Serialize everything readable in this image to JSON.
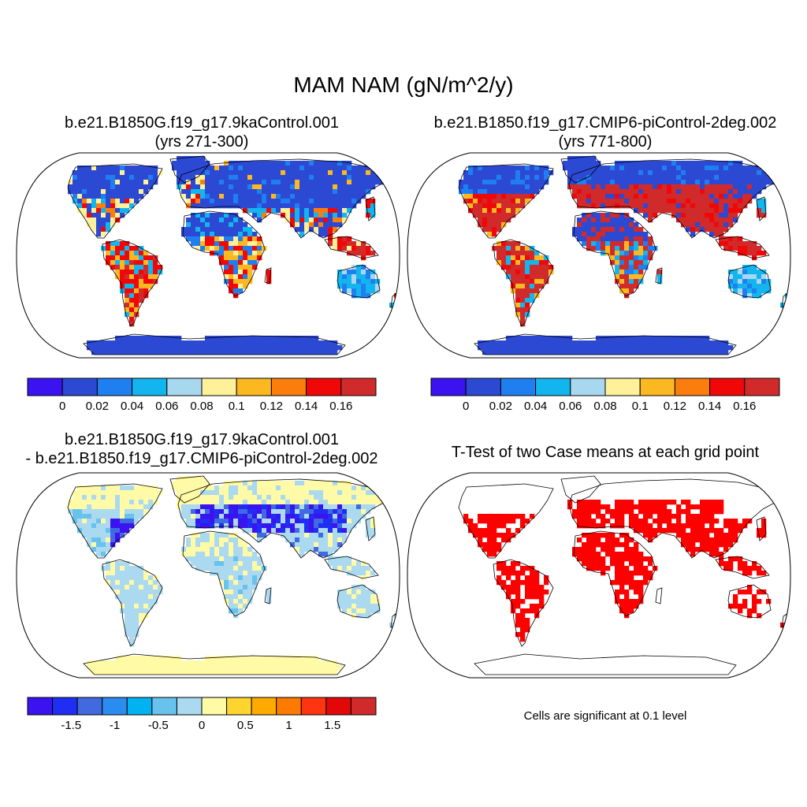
{
  "figure": {
    "title": "MAM NAM (gN/m^2/y)"
  },
  "panels": [
    {
      "id": "case1",
      "title_line1": "b.e21.B1850G.f19_g17.9kaControl.001",
      "title_line2": "(yrs 271-300)",
      "colorbar": {
        "colors": [
          "#3b12f0",
          "#2c49d4",
          "#1f7ff0",
          "#13b5ef",
          "#a8d8f0",
          "#fff199",
          "#fcb821",
          "#fb7d0e",
          "#f00808",
          "#d12a2a"
        ],
        "tick_labels": [
          "0",
          "0.02",
          "0.04",
          "0.06",
          "0.08",
          "0.1",
          "0.12",
          "0.14",
          "0.16"
        ]
      }
    },
    {
      "id": "case2",
      "title_line1": "b.e21.B1850.f19_g17.CMIP6-piControl-2deg.002",
      "title_line2": "(yrs 771-800)",
      "colorbar": {
        "colors": [
          "#3b12f0",
          "#2c49d4",
          "#1f7ff0",
          "#13b5ef",
          "#a8d8f0",
          "#fff199",
          "#fcb821",
          "#fb7d0e",
          "#f00808",
          "#d12a2a"
        ],
        "tick_labels": [
          "0",
          "0.02",
          "0.04",
          "0.06",
          "0.08",
          "0.1",
          "0.12",
          "0.14",
          "0.16"
        ]
      }
    },
    {
      "id": "difference",
      "title_line1": "b.e21.B1850G.f19_g17.9kaControl.001",
      "title_line2": "- b.e21.B1850.f19_g17.CMIP6-piControl-2deg.002",
      "colorbar": {
        "colors": [
          "#3b12f0",
          "#1f2ef2",
          "#4169e0",
          "#2a8cf0",
          "#00b2f2",
          "#67c2ee",
          "#aad9f0",
          "#fffaa6",
          "#fed42f",
          "#ffaa00",
          "#ff7a00",
          "#ff3410",
          "#e20808",
          "#d12a2a"
        ],
        "tick_labels": [
          "-1.5",
          "-1",
          "-0.5",
          "0",
          "0.5",
          "1",
          "1.5"
        ]
      }
    },
    {
      "id": "ttest",
      "title_line1": "T-Test of two Case means at each grid point",
      "note": "Cells are significant at 0.1 level",
      "significant_color": "#ff0000"
    }
  ],
  "map_style": {
    "land_background": "#ffffff",
    "coastline_color": "#000000",
    "ocean_color": "#ffffff"
  }
}
